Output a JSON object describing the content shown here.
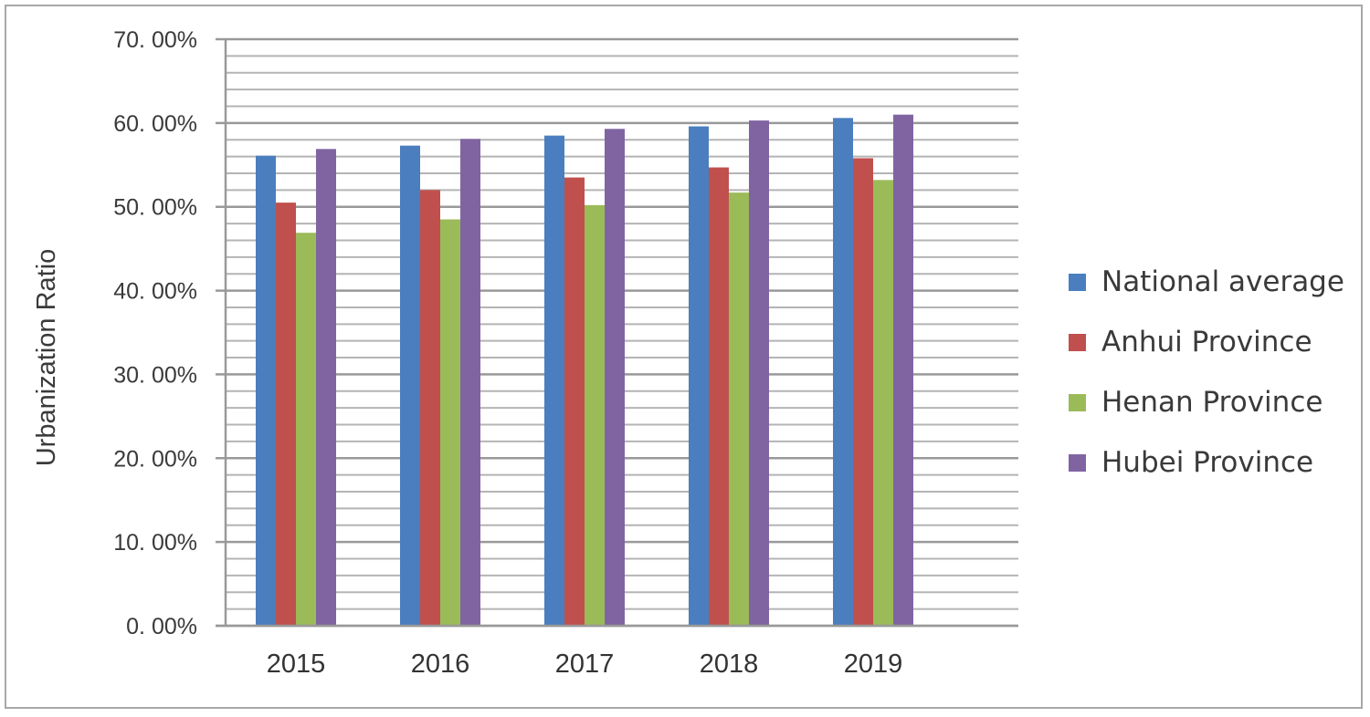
{
  "chart_data": {
    "type": "bar",
    "title": "",
    "xlabel": "",
    "ylabel": "Urbanization Ratio",
    "categories": [
      "2015",
      "2016",
      "2017",
      "2018",
      "2019"
    ],
    "series": [
      {
        "name": "National average",
        "color": "#4a7ebf",
        "values": [
          56.1,
          57.3,
          58.5,
          59.6,
          60.6
        ]
      },
      {
        "name": "Anhui Province",
        "color": "#c0504d",
        "values": [
          50.5,
          52.0,
          53.5,
          54.7,
          55.8
        ]
      },
      {
        "name": "Henan Province",
        "color": "#9bbb59",
        "values": [
          46.9,
          48.5,
          50.2,
          51.7,
          53.2
        ]
      },
      {
        "name": "Hubei Province",
        "color": "#8064a2",
        "values": [
          56.9,
          58.1,
          59.3,
          60.3,
          61.0
        ]
      }
    ],
    "yticks": [
      "0. 00%",
      "10. 00%",
      "20. 00%",
      "30. 00%",
      "40. 00%",
      "50. 00%",
      "60. 00%",
      "70. 00%"
    ],
    "ylim": [
      0,
      70
    ],
    "minor_grid_step": 2,
    "grid": true,
    "legend_position": "right"
  }
}
